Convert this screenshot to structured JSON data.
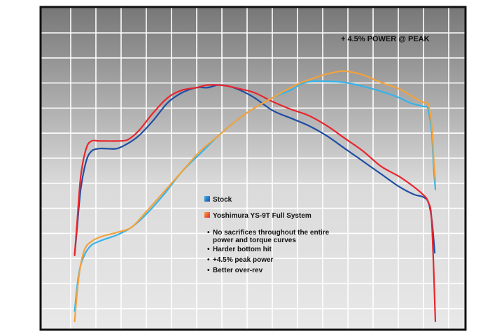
{
  "chart_data": {
    "type": "line",
    "title": "",
    "xlabel": "",
    "ylabel": "",
    "grid": true,
    "x_range": [
      0,
      100
    ],
    "y_range": [
      0,
      100
    ],
    "annotations": [
      {
        "text": "+ 4.5% POWER @ PEAK",
        "near_series": "Yoshimura YS-9T Full System power"
      }
    ],
    "legend": {
      "placement": "center",
      "entries": [
        {
          "name": "Stock",
          "colors": [
            "#1f4ea3",
            "#36b3ea"
          ]
        },
        {
          "name": "Yoshimura YS-9T Full System",
          "colors": [
            "#e8262e",
            "#f3a23c"
          ]
        }
      ],
      "bullets": [
        "No sacrifices throughout the entire power and torque curves",
        "Harder bottom hit",
        "+4.5% peak power",
        "Better over-rev"
      ]
    },
    "series": [
      {
        "key": "stock_torque",
        "color": "#1f4ea3",
        "stroke_width": 2.2,
        "x": [
          0.3,
          1.0,
          2.0,
          3.5,
          5.0,
          7.0,
          9.0,
          12.0,
          15.0,
          18.0,
          22.0,
          26.0,
          30.0,
          34.0,
          37.0,
          40.0,
          43.0,
          46.0,
          50.0,
          55.0,
          60.0,
          65.0,
          70.0,
          75.0,
          80.0,
          85.0,
          90.0,
          94.0,
          96.5,
          98.0,
          99.0,
          99.8
        ],
        "y": [
          29,
          40,
          55,
          66,
          70,
          71,
          71,
          71,
          73,
          76,
          82,
          89,
          93,
          95,
          95,
          96,
          95.5,
          94,
          91,
          86,
          83,
          80,
          76,
          71,
          66,
          61,
          56,
          53,
          52,
          50,
          43,
          30
        ]
      },
      {
        "key": "yoshimura_torque",
        "color": "#e8262e",
        "stroke_width": 2.2,
        "x": [
          0.3,
          1.0,
          2.0,
          3.5,
          5.0,
          7.0,
          9.0,
          12.0,
          15.0,
          18.0,
          22.0,
          26.0,
          30.0,
          34.0,
          37.0,
          40.0,
          43.0,
          46.0,
          50.0,
          55.0,
          60.0,
          65.0,
          70.0,
          75.0,
          80.0,
          85.0,
          90.0,
          94.0,
          96.5,
          98.0,
          99.0,
          100.0
        ],
        "y": [
          29,
          42,
          60,
          71,
          74,
          74,
          74,
          74,
          74.5,
          78,
          85,
          91,
          94,
          95,
          96,
          96,
          95.5,
          94.5,
          93,
          89.5,
          86.5,
          84,
          80,
          75,
          70,
          64,
          60,
          56,
          53,
          50,
          42,
          3
        ]
      },
      {
        "key": "stock_power",
        "color": "#36b3ea",
        "stroke_width": 2.2,
        "x": [
          0.3,
          1.5,
          3.0,
          5.0,
          8.0,
          12.0,
          16.0,
          20.0,
          25.0,
          30.0,
          35.0,
          40.0,
          45.0,
          50.0,
          55.0,
          60.0,
          63.0,
          66.0,
          70.0,
          75.0,
          80.0,
          85.0,
          90.0,
          93.0,
          95.5,
          97.0,
          98.0,
          99.0,
          99.5,
          100.0
        ],
        "y": [
          7,
          22,
          29,
          33,
          35,
          37,
          40,
          45,
          53,
          62,
          69,
          76,
          82,
          87,
          91,
          94,
          96.5,
          97.5,
          97.5,
          97,
          95.5,
          93.5,
          91,
          89,
          88,
          87.5,
          86.5,
          77,
          64,
          55
        ]
      },
      {
        "key": "yoshimura_power",
        "color": "#f3a23c",
        "stroke_width": 2.2,
        "x": [
          0.3,
          1.5,
          3.0,
          5.0,
          8.0,
          12.0,
          16.0,
          20.0,
          25.0,
          30.0,
          35.0,
          40.0,
          45.0,
          50.0,
          55.0,
          60.0,
          63.0,
          66.0,
          69.0,
          72.0,
          75.0,
          80.0,
          85.0,
          90.0,
          93.0,
          95.5,
          97.0,
          98.0,
          99.0,
          99.5,
          100.0
        ],
        "y": [
          3,
          21,
          31,
          34.5,
          36.5,
          38,
          40,
          46,
          54,
          62,
          70,
          76,
          82,
          87,
          91,
          95,
          97,
          98.5,
          100,
          101,
          101.5,
          100,
          97,
          94.5,
          92,
          90,
          89,
          88.5,
          80,
          68,
          58
        ]
      }
    ]
  }
}
